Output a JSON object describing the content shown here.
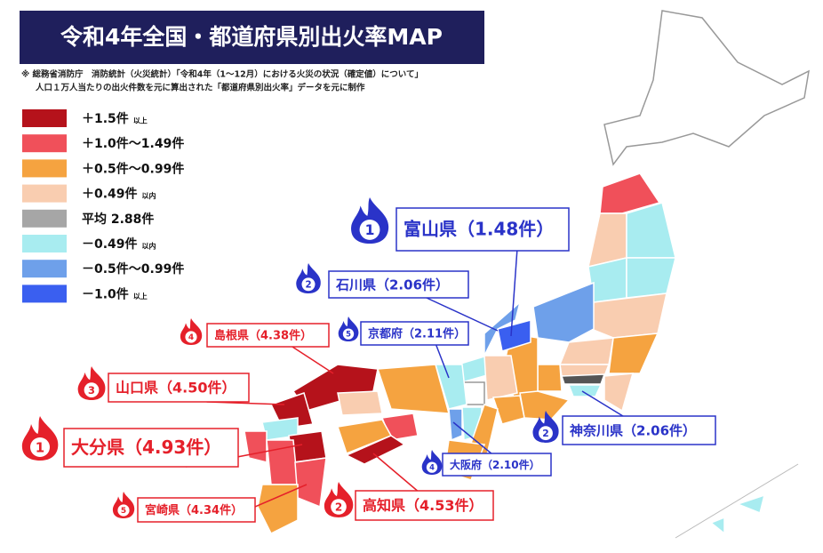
{
  "header": {
    "title": "令和4年全国・都道府県別出火率MAP",
    "notes": [
      "※ 総務省消防庁　消防統計（火災統計）「令和4年（1～12月）における火災の状況（確定値）について」",
      "人口１万人当たりの出火件数を元に算出された「都道府県別出火率」データを元に制作"
    ]
  },
  "legend": [
    {
      "color": "#b5121b",
      "label": "＋1.5件",
      "suffix": "以上"
    },
    {
      "color": "#f0505a",
      "label": "＋1.0件～1.49件"
    },
    {
      "color": "#f5a340",
      "label": "＋0.5件～0.99件"
    },
    {
      "color": "#f9cdb0",
      "label": "＋0.49件",
      "suffix": "以内"
    },
    {
      "color": "#a6a6a6",
      "label": "平均 2.88件"
    },
    {
      "color": "#a8ecf0",
      "label": "－0.49件",
      "suffix": "以内"
    },
    {
      "color": "#6ea0ea",
      "label": "－0.5件～0.99件"
    },
    {
      "color": "#3a5ff0",
      "label": "－1.0件",
      "suffix": "以上"
    }
  ],
  "callouts": [
    {
      "rank": 1,
      "label": "富山県（1.48件）",
      "color": "#2a33c8"
    },
    {
      "rank": 2,
      "label": "石川県（2.06件）",
      "color": "#2a33c8"
    },
    {
      "rank": 5,
      "label": "京都府（2.11件）",
      "color": "#2a33c8"
    },
    {
      "rank": 2,
      "label": "神奈川県（2.06件）",
      "color": "#2a33c8"
    },
    {
      "rank": 4,
      "label": "大阪府（2.10件）",
      "color": "#2a33c8"
    },
    {
      "rank": 4,
      "label": "島根県（4.38件）",
      "color": "#e5202a"
    },
    {
      "rank": 3,
      "label": "山口県（4.50件）",
      "color": "#e5202a"
    },
    {
      "rank": 1,
      "label": "大分県（4.93件）",
      "color": "#e5202a"
    },
    {
      "rank": 5,
      "label": "宮崎県（4.34件）",
      "color": "#e5202a"
    },
    {
      "rank": 2,
      "label": "高知県（4.53件）",
      "color": "#e5202a"
    }
  ]
}
